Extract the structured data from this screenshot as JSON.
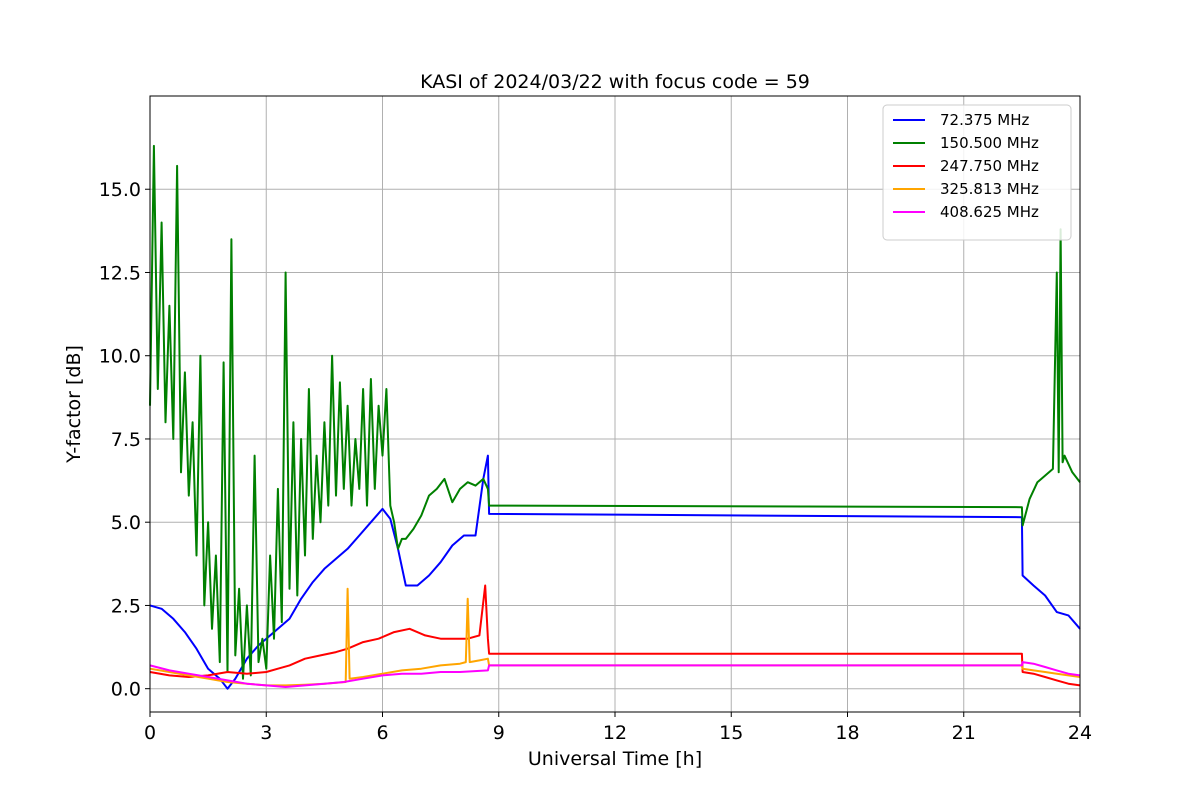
{
  "chart_data": {
    "type": "line",
    "title": "KASI of 2024/03/22 with focus code = 59",
    "xlabel": "Universal Time [h]",
    "ylabel": "Y-factor [dB]",
    "xlim": [
      0,
      24
    ],
    "ylim": [
      -0.7,
      17.8
    ],
    "xticks": [
      0,
      3,
      6,
      9,
      12,
      15,
      18,
      21,
      24
    ],
    "yticks": [
      0.0,
      2.5,
      5.0,
      7.5,
      10.0,
      12.5,
      15.0
    ],
    "ytick_labels": [
      "0.0",
      "2.5",
      "5.0",
      "7.5",
      "10.0",
      "12.5",
      "15.0"
    ],
    "grid": true,
    "legend_position": "top-right",
    "series": [
      {
        "name": "72.375 MHz",
        "color": "#0000ff",
        "x": [
          0,
          0.3,
          0.6,
          0.9,
          1.2,
          1.5,
          1.8,
          2.0,
          2.2,
          2.5,
          2.8,
          3.0,
          3.3,
          3.6,
          3.9,
          4.2,
          4.5,
          4.8,
          5.1,
          5.4,
          5.7,
          6.0,
          6.2,
          6.4,
          6.6,
          6.9,
          7.2,
          7.5,
          7.8,
          8.1,
          8.4,
          8.6,
          8.72,
          8.75,
          22.5,
          22.52,
          22.8,
          23.1,
          23.4,
          23.7,
          24
        ],
        "y": [
          2.5,
          2.4,
          2.1,
          1.7,
          1.2,
          0.6,
          0.3,
          0.0,
          0.3,
          0.9,
          1.3,
          1.5,
          1.8,
          2.1,
          2.7,
          3.2,
          3.6,
          3.9,
          4.2,
          4.6,
          5.0,
          5.4,
          5.1,
          4.2,
          3.1,
          3.1,
          3.4,
          3.8,
          4.3,
          4.6,
          4.6,
          6.3,
          7.0,
          5.25,
          5.15,
          3.4,
          3.1,
          2.8,
          2.3,
          2.2,
          1.8
        ]
      },
      {
        "name": "150.500 MHz",
        "color": "#008000",
        "x": [
          0,
          0.1,
          0.2,
          0.3,
          0.4,
          0.5,
          0.6,
          0.7,
          0.8,
          0.9,
          1.0,
          1.1,
          1.2,
          1.3,
          1.4,
          1.5,
          1.6,
          1.7,
          1.8,
          1.9,
          2.0,
          2.1,
          2.2,
          2.3,
          2.4,
          2.5,
          2.6,
          2.7,
          2.8,
          2.9,
          3.0,
          3.1,
          3.2,
          3.3,
          3.4,
          3.5,
          3.6,
          3.7,
          3.8,
          3.9,
          4.0,
          4.1,
          4.2,
          4.3,
          4.4,
          4.5,
          4.6,
          4.7,
          4.8,
          4.9,
          5.0,
          5.1,
          5.2,
          5.3,
          5.4,
          5.5,
          5.6,
          5.7,
          5.8,
          5.9,
          6.0,
          6.1,
          6.2,
          6.3,
          6.4,
          6.5,
          6.6,
          6.8,
          7.0,
          7.2,
          7.4,
          7.6,
          7.8,
          8.0,
          8.2,
          8.4,
          8.6,
          8.72,
          8.75,
          22.5,
          22.52,
          22.7,
          22.9,
          23.1,
          23.3,
          23.4,
          23.45,
          23.5,
          23.55,
          23.6,
          23.8,
          24
        ],
        "y": [
          8.5,
          16.3,
          9.0,
          14.0,
          8.0,
          11.5,
          7.5,
          15.7,
          6.5,
          9.5,
          5.8,
          8.0,
          4.0,
          10.0,
          2.5,
          5.0,
          1.8,
          4.0,
          0.8,
          9.8,
          0.5,
          13.5,
          1.0,
          3.0,
          0.3,
          2.5,
          0.4,
          7.0,
          0.8,
          1.5,
          0.6,
          4.0,
          1.5,
          6.0,
          2.0,
          12.5,
          3.0,
          8.0,
          2.8,
          7.5,
          4.0,
          9.0,
          4.5,
          7.0,
          5.0,
          8.0,
          5.5,
          10.0,
          5.8,
          9.2,
          6.0,
          8.5,
          5.5,
          7.5,
          6.0,
          9.0,
          5.5,
          9.3,
          6.0,
          8.5,
          7.0,
          9.0,
          5.5,
          5.0,
          4.2,
          4.5,
          4.5,
          4.8,
          5.2,
          5.8,
          6.0,
          6.3,
          5.6,
          6.0,
          6.2,
          6.1,
          6.3,
          6.0,
          5.5,
          5.45,
          4.9,
          5.7,
          6.2,
          6.4,
          6.6,
          12.5,
          6.5,
          13.8,
          6.8,
          7.0,
          6.5,
          6.2
        ]
      },
      {
        "name": "247.750 MHz",
        "color": "#ff0000",
        "x": [
          0,
          0.5,
          1.0,
          1.5,
          2.0,
          2.5,
          3.0,
          3.3,
          3.6,
          4.0,
          4.4,
          4.8,
          5.1,
          5.5,
          5.9,
          6.3,
          6.7,
          7.1,
          7.5,
          7.9,
          8.2,
          8.5,
          8.65,
          8.72,
          8.75,
          22.5,
          22.52,
          22.8,
          23.1,
          23.4,
          23.7,
          24
        ],
        "y": [
          0.5,
          0.4,
          0.35,
          0.4,
          0.5,
          0.45,
          0.5,
          0.6,
          0.7,
          0.9,
          1.0,
          1.1,
          1.2,
          1.4,
          1.5,
          1.7,
          1.8,
          1.6,
          1.5,
          1.5,
          1.5,
          1.6,
          3.1,
          1.5,
          1.05,
          1.05,
          0.5,
          0.45,
          0.35,
          0.25,
          0.15,
          0.1
        ]
      },
      {
        "name": "325.813 MHz",
        "color": "#ffa500",
        "x": [
          0,
          0.5,
          1.0,
          1.5,
          2.0,
          2.5,
          3.0,
          3.5,
          4.0,
          4.5,
          5.05,
          5.1,
          5.15,
          5.5,
          6.0,
          6.5,
          7.0,
          7.5,
          8.0,
          8.15,
          8.2,
          8.25,
          8.5,
          8.72,
          8.75,
          22.5,
          22.52,
          22.8,
          23.1,
          23.4,
          23.7,
          24
        ],
        "y": [
          0.6,
          0.5,
          0.4,
          0.3,
          0.2,
          0.15,
          0.1,
          0.1,
          0.12,
          0.15,
          0.2,
          3.0,
          0.3,
          0.35,
          0.45,
          0.55,
          0.6,
          0.7,
          0.75,
          0.8,
          2.7,
          0.8,
          0.85,
          0.9,
          0.7,
          0.7,
          0.6,
          0.55,
          0.5,
          0.45,
          0.4,
          0.35
        ]
      },
      {
        "name": "408.625 MHz",
        "color": "#ff00ff",
        "x": [
          0,
          0.5,
          1.0,
          1.5,
          2.0,
          2.5,
          3.0,
          3.5,
          4.0,
          4.5,
          5.0,
          5.5,
          6.0,
          6.5,
          7.0,
          7.5,
          8.0,
          8.72,
          8.75,
          22.5,
          22.52,
          22.8,
          23.1,
          23.4,
          23.7,
          24
        ],
        "y": [
          0.7,
          0.55,
          0.45,
          0.35,
          0.25,
          0.15,
          0.1,
          0.05,
          0.1,
          0.15,
          0.2,
          0.3,
          0.4,
          0.45,
          0.45,
          0.5,
          0.5,
          0.55,
          0.7,
          0.7,
          0.8,
          0.75,
          0.65,
          0.55,
          0.45,
          0.4
        ]
      }
    ]
  }
}
